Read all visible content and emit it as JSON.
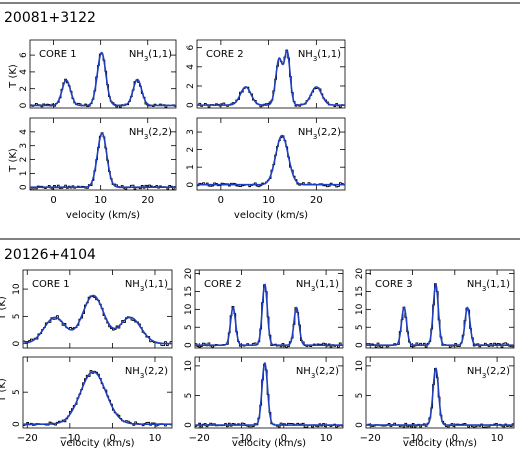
{
  "sections": [
    {
      "title": "20081+3122",
      "xlabel": "velocity (km/s)",
      "ylabel": "T (K)",
      "x_ticks": [
        0,
        10,
        20
      ]
    },
    {
      "title": "20126+4104",
      "xlabel": "velocity (km/s)",
      "ylabel": "T (K)",
      "x_ticks": [
        -20,
        -10,
        0,
        10
      ]
    }
  ],
  "colors": {
    "model": "#1f3fbf",
    "data": "#000000"
  },
  "chart_data": [
    {
      "type": "line",
      "source": "20081+3122",
      "core": "CORE 1",
      "transition": "NH3(1,1)",
      "xlim": [
        -5,
        26
      ],
      "ylim": [
        -0.3,
        7.8
      ],
      "yticks": [
        0,
        2,
        4,
        6
      ],
      "peaks": [
        {
          "v": 2.7,
          "amp": 3.0,
          "w": 0.9
        },
        {
          "v": 10.2,
          "amp": 6.3,
          "w": 0.9
        },
        {
          "v": 17.8,
          "amp": 3.1,
          "w": 0.9
        }
      ]
    },
    {
      "type": "line",
      "source": "20081+3122",
      "core": "CORE 2",
      "transition": "NH3(1,1)",
      "xlim": [
        -5,
        26
      ],
      "ylim": [
        -0.3,
        6.8
      ],
      "yticks": [
        0,
        2,
        4,
        6
      ],
      "peaks": [
        {
          "v": 5.2,
          "amp": 1.9,
          "w": 1.1
        },
        {
          "v": 12.2,
          "amp": 4.8,
          "w": 0.7
        },
        {
          "v": 13.9,
          "amp": 5.4,
          "w": 0.6
        },
        {
          "v": 20.0,
          "amp": 1.9,
          "w": 1.1
        }
      ]
    },
    {
      "type": "line",
      "source": "20081+3122",
      "core": "CORE 1",
      "transition": "NH3(2,2)",
      "xlim": [
        -5,
        26
      ],
      "ylim": [
        -0.2,
        5.0
      ],
      "yticks": [
        0,
        1,
        2,
        3,
        4
      ],
      "peaks": [
        {
          "v": 10.3,
          "amp": 3.9,
          "w": 1.0
        }
      ]
    },
    {
      "type": "line",
      "source": "20081+3122",
      "core": "CORE 2",
      "transition": "NH3(2,2)",
      "xlim": [
        -5,
        26
      ],
      "ylim": [
        -0.3,
        3.8
      ],
      "yticks": [
        0,
        1,
        2,
        3
      ],
      "peaks": [
        {
          "v": 12.8,
          "amp": 2.8,
          "w": 1.3
        }
      ]
    },
    {
      "type": "line",
      "source": "20126+4104",
      "core": "CORE 1",
      "transition": "NH3(1,1)",
      "xlim": [
        -21,
        14
      ],
      "ylim": [
        -0.8,
        13.5
      ],
      "yticks": [
        0,
        5,
        10
      ],
      "peaks": [
        {
          "v": -13.5,
          "amp": 4.8,
          "w": 2.5
        },
        {
          "v": -4.5,
          "amp": 8.8,
          "w": 2.5
        },
        {
          "v": 4.2,
          "amp": 4.8,
          "w": 2.5
        }
      ]
    },
    {
      "type": "line",
      "source": "20126+4104",
      "core": "CORE 2",
      "transition": "NH3(1,1)",
      "xlim": [
        -21,
        14
      ],
      "ylim": [
        -0.8,
        21
      ],
      "yticks": [
        0,
        5,
        10,
        15,
        20
      ],
      "peaks": [
        {
          "v": -12.0,
          "amp": 10.5,
          "w": 0.6
        },
        {
          "v": -4.5,
          "amp": 17.0,
          "w": 0.6
        },
        {
          "v": 3.0,
          "amp": 10.5,
          "w": 0.6
        }
      ]
    },
    {
      "type": "line",
      "source": "20126+4104",
      "core": "CORE 3",
      "transition": "NH3(1,1)",
      "xlim": [
        -21,
        14
      ],
      "ylim": [
        -0.8,
        21
      ],
      "yticks": [
        0,
        5,
        10,
        15,
        20
      ],
      "peaks": [
        {
          "v": -12.0,
          "amp": 10.5,
          "w": 0.6
        },
        {
          "v": -4.5,
          "amp": 17.0,
          "w": 0.6
        },
        {
          "v": 3.0,
          "amp": 10.5,
          "w": 0.6
        }
      ]
    },
    {
      "type": "line",
      "source": "20126+4104",
      "core": "CORE 1",
      "transition": "NH3(2,2)",
      "xlim": [
        -21,
        14
      ],
      "ylim": [
        -0.6,
        10.5
      ],
      "yticks": [
        0,
        5
      ],
      "peaks": [
        {
          "v": -4.5,
          "amp": 8.2,
          "w": 3.0
        }
      ]
    },
    {
      "type": "line",
      "source": "20126+4104",
      "core": "CORE 2",
      "transition": "NH3(2,2)",
      "xlim": [
        -21,
        14
      ],
      "ylim": [
        -0.5,
        11.5
      ],
      "yticks": [
        0,
        5,
        10
      ],
      "peaks": [
        {
          "v": -4.5,
          "amp": 10.5,
          "w": 0.65
        }
      ]
    },
    {
      "type": "line",
      "source": "20126+4104",
      "core": "CORE 3",
      "transition": "NH3(2,2)",
      "xlim": [
        -21,
        14
      ],
      "ylim": [
        -0.5,
        11.5
      ],
      "yticks": [
        0,
        5,
        10
      ],
      "peaks": [
        {
          "v": -4.5,
          "amp": 9.6,
          "w": 0.65
        }
      ]
    }
  ]
}
